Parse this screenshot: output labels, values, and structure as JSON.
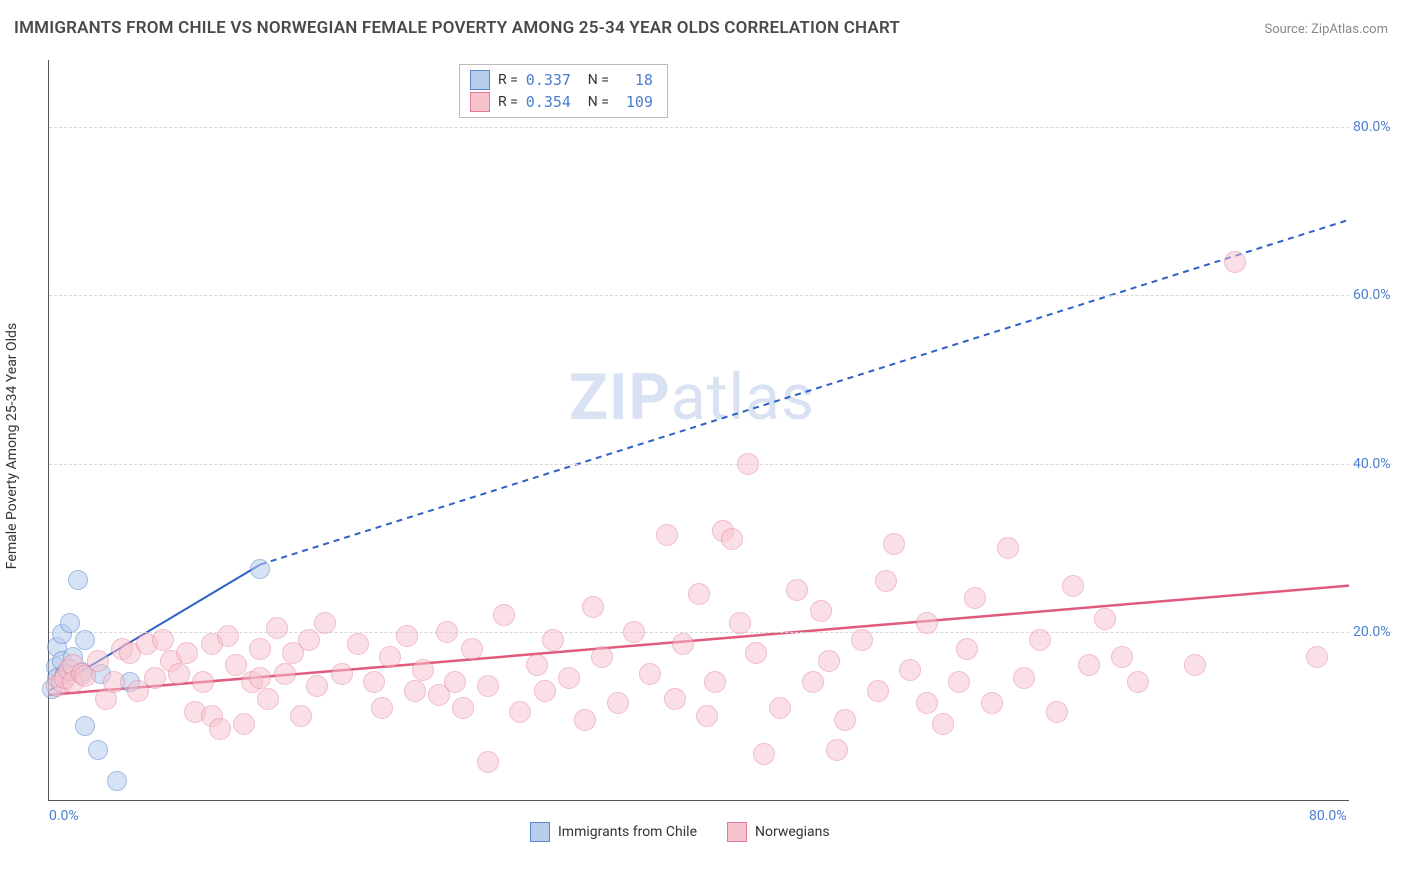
{
  "title": "IMMIGRANTS FROM CHILE VS NORWEGIAN FEMALE POVERTY AMONG 25-34 YEAR OLDS CORRELATION CHART",
  "source_label": "Source: ZipAtlas.com",
  "y_axis_label": "Female Poverty Among 25-34 Year Olds",
  "watermark": {
    "bold": "ZIP",
    "rest": "atlas"
  },
  "chart": {
    "type": "scatter-correlation",
    "background_color": "#ffffff",
    "grid_color": "#d8d8d8",
    "axis_color": "#555555",
    "tick_color": "#4b7dd1",
    "xlim": [
      0,
      80
    ],
    "ylim": [
      0,
      88
    ],
    "x_ticks": [
      {
        "v": 0,
        "label": "0.0%"
      },
      {
        "v": 80,
        "label": "80.0%"
      }
    ],
    "y_ticks": [
      {
        "v": 20,
        "label": "20.0%"
      },
      {
        "v": 40,
        "label": "40.0%"
      },
      {
        "v": 60,
        "label": "60.0%"
      },
      {
        "v": 80,
        "label": "80.0%"
      }
    ],
    "legend_top": {
      "rows": [
        {
          "swatch_fill": "#b6cdee",
          "swatch_stroke": "#5a86c9",
          "r_label": "R =",
          "r_value": "0.337",
          "n_label": "N =",
          "n_value": "18"
        },
        {
          "swatch_fill": "#f7c3cf",
          "swatch_stroke": "#e47c99",
          "r_label": "R =",
          "r_value": "0.354",
          "n_label": "N =",
          "n_value": "109"
        }
      ]
    },
    "legend_bottom": {
      "items": [
        {
          "swatch_fill": "#b6cdee",
          "swatch_stroke": "#5a86c9",
          "label": "Immigrants from Chile"
        },
        {
          "swatch_fill": "#f7c3cf",
          "swatch_stroke": "#e47c99",
          "label": "Norwegians"
        }
      ]
    },
    "series": [
      {
        "name": "chile",
        "marker_radius": 9,
        "fill": "#b6cdee",
        "fill_opacity": 0.55,
        "stroke": "#5a86c9",
        "stroke_width": 1.2,
        "trend": {
          "x1": 0,
          "y1": 13,
          "x2": 13,
          "y2": 28,
          "solid_until_x": 13,
          "extend_to_x": 80,
          "extend_to_y": 69,
          "color": "#2d62c5",
          "width": 2,
          "dash": "6,5"
        },
        "points": [
          [
            0.2,
            13.2
          ],
          [
            0.4,
            15.8
          ],
          [
            0.5,
            14.5
          ],
          [
            0.5,
            18.2
          ],
          [
            0.8,
            19.8
          ],
          [
            0.8,
            16.5
          ],
          [
            1.0,
            15.0
          ],
          [
            1.3,
            21.0
          ],
          [
            1.5,
            17.0
          ],
          [
            1.8,
            26.2
          ],
          [
            2.0,
            15.2
          ],
          [
            2.2,
            19.0
          ],
          [
            2.2,
            8.8
          ],
          [
            3.0,
            6.0
          ],
          [
            3.2,
            15.0
          ],
          [
            4.2,
            2.3
          ],
          [
            5.0,
            14.0
          ],
          [
            13.0,
            27.5
          ]
        ]
      },
      {
        "name": "norwegians",
        "marker_radius": 10,
        "fill": "#f7c3cf",
        "fill_opacity": 0.5,
        "stroke": "#e47c99",
        "stroke_width": 1.2,
        "trend": {
          "x1": 0,
          "y1": 12.5,
          "x2": 80,
          "y2": 25.5,
          "color": "#e05a7e",
          "width": 2.5
        },
        "points": [
          [
            0.5,
            13.5
          ],
          [
            0.8,
            14.0
          ],
          [
            1.0,
            14.5
          ],
          [
            1.2,
            15.5
          ],
          [
            1.5,
            16.0
          ],
          [
            1.5,
            14.0
          ],
          [
            2.0,
            15.0
          ],
          [
            2.2,
            14.8
          ],
          [
            3.0,
            16.5
          ],
          [
            3.5,
            12.0
          ],
          [
            4.0,
            14.0
          ],
          [
            4.5,
            18.0
          ],
          [
            5.0,
            17.5
          ],
          [
            5.5,
            13.0
          ],
          [
            6.0,
            18.5
          ],
          [
            6.5,
            14.5
          ],
          [
            7.0,
            19.0
          ],
          [
            7.5,
            16.5
          ],
          [
            8.0,
            15.0
          ],
          [
            8.5,
            17.5
          ],
          [
            9.0,
            10.5
          ],
          [
            9.5,
            14.0
          ],
          [
            10.0,
            10.0
          ],
          [
            10.0,
            18.5
          ],
          [
            10.5,
            8.5
          ],
          [
            11.0,
            19.5
          ],
          [
            11.5,
            16.0
          ],
          [
            12.0,
            9.0
          ],
          [
            12.5,
            14.0
          ],
          [
            13.0,
            18.0
          ],
          [
            13.5,
            12.0
          ],
          [
            14.0,
            20.5
          ],
          [
            14.5,
            15.0
          ],
          [
            15.0,
            17.5
          ],
          [
            15.5,
            10.0
          ],
          [
            16.0,
            19.0
          ],
          [
            16.5,
            13.5
          ],
          [
            17.0,
            21.0
          ],
          [
            18.0,
            15.0
          ],
          [
            19.0,
            18.5
          ],
          [
            20.0,
            14.0
          ],
          [
            20.5,
            11.0
          ],
          [
            21.0,
            17.0
          ],
          [
            22.0,
            19.5
          ],
          [
            22.5,
            13.0
          ],
          [
            23.0,
            15.5
          ],
          [
            24.0,
            12.5
          ],
          [
            24.5,
            20.0
          ],
          [
            25.0,
            14.0
          ],
          [
            25.5,
            11.0
          ],
          [
            26.0,
            18.0
          ],
          [
            27.0,
            13.5
          ],
          [
            27.0,
            4.5
          ],
          [
            28.0,
            22.0
          ],
          [
            29.0,
            10.5
          ],
          [
            30.0,
            16.0
          ],
          [
            30.5,
            13.0
          ],
          [
            31.0,
            19.0
          ],
          [
            32.0,
            14.5
          ],
          [
            33.0,
            9.5
          ],
          [
            33.5,
            23.0
          ],
          [
            34.0,
            17.0
          ],
          [
            35.0,
            11.5
          ],
          [
            36.0,
            20.0
          ],
          [
            37.0,
            15.0
          ],
          [
            38.0,
            31.5
          ],
          [
            38.5,
            12.0
          ],
          [
            39.0,
            18.5
          ],
          [
            40.0,
            24.5
          ],
          [
            40.5,
            10.0
          ],
          [
            41.0,
            14.0
          ],
          [
            41.5,
            32.0
          ],
          [
            42.0,
            31.0
          ],
          [
            42.5,
            21.0
          ],
          [
            43.0,
            40.0
          ],
          [
            43.5,
            17.5
          ],
          [
            44.0,
            5.5
          ],
          [
            45.0,
            11.0
          ],
          [
            46.0,
            25.0
          ],
          [
            47.0,
            14.0
          ],
          [
            47.5,
            22.5
          ],
          [
            48.0,
            16.5
          ],
          [
            49.0,
            9.5
          ],
          [
            50.0,
            19.0
          ],
          [
            51.0,
            13.0
          ],
          [
            51.5,
            26.0
          ],
          [
            52.0,
            30.5
          ],
          [
            53.0,
            15.5
          ],
          [
            54.0,
            21.0
          ],
          [
            55.0,
            9.0
          ],
          [
            56.0,
            14.0
          ],
          [
            56.5,
            18.0
          ],
          [
            57.0,
            24.0
          ],
          [
            58.0,
            11.5
          ],
          [
            59.0,
            30.0
          ],
          [
            60.0,
            14.5
          ],
          [
            61.0,
            19.0
          ],
          [
            62.0,
            10.5
          ],
          [
            63.0,
            25.5
          ],
          [
            64.0,
            16.0
          ],
          [
            65.0,
            21.5
          ],
          [
            66.0,
            17.0
          ],
          [
            67.0,
            14.0
          ],
          [
            70.5,
            16.0
          ],
          [
            73.0,
            64.0
          ],
          [
            78.0,
            17.0
          ],
          [
            54.0,
            11.5
          ],
          [
            48.5,
            6.0
          ],
          [
            13.0,
            14.5
          ]
        ]
      }
    ]
  }
}
